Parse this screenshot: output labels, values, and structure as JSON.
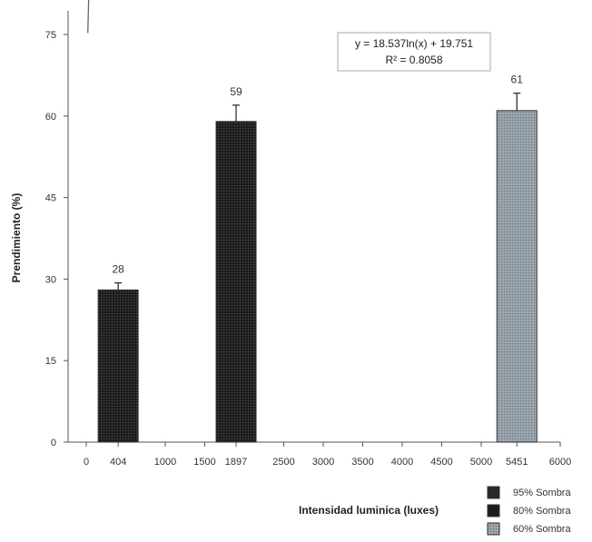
{
  "chart_data": {
    "type": "bar",
    "xlabel": "Intensidad luminica (luxes)",
    "ylabel": "Prendimiento (%)",
    "ylim": [
      0,
      75
    ],
    "xlim": [
      0,
      6000
    ],
    "yticks": [
      0,
      15,
      30,
      45,
      60,
      75
    ],
    "xticks": [
      0,
      404,
      1000,
      1500,
      1897,
      2500,
      3000,
      3500,
      4000,
      4500,
      5000,
      5451,
      6000
    ],
    "grid": false,
    "legend_position": "bottom-right",
    "series": [
      {
        "name": "95% Sombra",
        "x": 404,
        "value": 28,
        "error": 1.3,
        "label": "28",
        "color": "#2a2a2a"
      },
      {
        "name": "80% Sombra",
        "x": 1897,
        "value": 59,
        "error": 3.0,
        "label": "59",
        "color": "#1c1c1c"
      },
      {
        "name": "60% Sombra",
        "x": 5451,
        "value": 61,
        "error": 3.2,
        "label": "61",
        "color": "#8e9aa4"
      }
    ],
    "trendline": {
      "type": "logarithmic",
      "a": 18.537,
      "b": 19.751,
      "x_range": [
        20,
        6000
      ],
      "equation": "y = 18.537ln(x) + 19.751",
      "r2": "R² = 0.8058"
    }
  }
}
